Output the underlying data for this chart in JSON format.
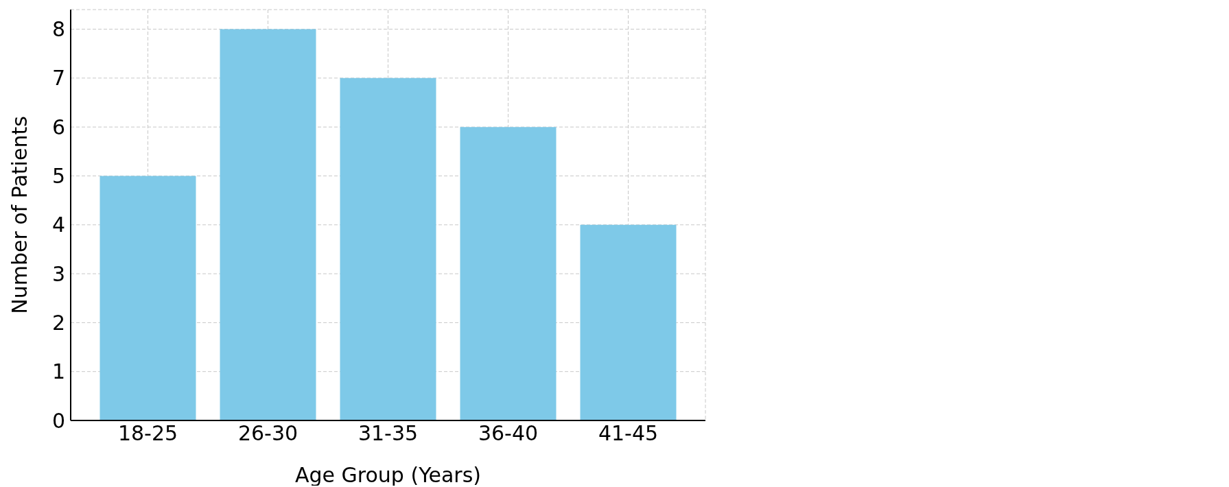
{
  "chart_data": {
    "type": "bar",
    "xlabel": "Age Group (Years)",
    "ylabel": "Number of Patients",
    "categories": [
      "18-25",
      "26-30",
      "31-35",
      "36-40",
      "41-45"
    ],
    "values": [
      5,
      8,
      7,
      6,
      4
    ],
    "color": "#7ec9e8",
    "ylim": [
      0,
      8.4
    ],
    "yticks": [
      0,
      1,
      2,
      3,
      4,
      5,
      6,
      7,
      8
    ],
    "grid": true
  }
}
